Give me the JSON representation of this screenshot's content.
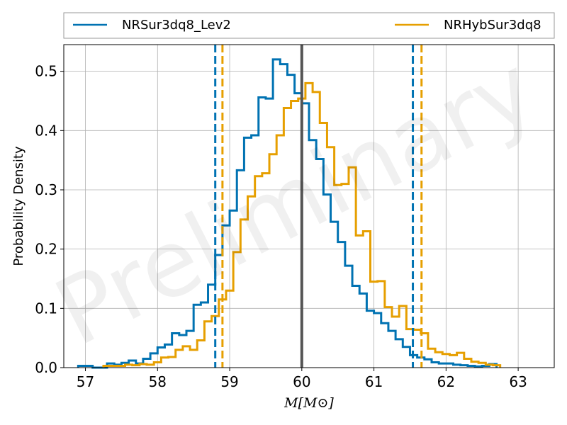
{
  "chart_data": {
    "type": "histogram",
    "title": "",
    "xlabel": "M[M⊙]",
    "ylabel": "Probability Density",
    "xlim": [
      56.7,
      63.5
    ],
    "ylim": [
      0.0,
      0.545
    ],
    "xticks": [
      57,
      58,
      59,
      60,
      61,
      62,
      63
    ],
    "yticks": [
      0.0,
      0.1,
      0.2,
      0.3,
      0.4,
      0.5
    ],
    "ytick_labels": [
      "0.0",
      "0.1",
      "0.2",
      "0.3",
      "0.4",
      "0.5"
    ],
    "grid": true,
    "legend_position": "top, above plot, two columns",
    "watermark": "Preliminary",
    "true_value": 60.0,
    "series": [
      {
        "name": "NRSur3dq8_Lev2",
        "color": "#0072b2",
        "bins_start": 56.9,
        "bin_width": 0.1,
        "values": [
          0.003,
          0.003,
          0,
          0,
          0.007,
          0.005,
          0.008,
          0.012,
          0.007,
          0.015,
          0.024,
          0.034,
          0.039,
          0.058,
          0.055,
          0.062,
          0.106,
          0.11,
          0.14,
          0.19,
          0.24,
          0.265,
          0.333,
          0.388,
          0.392,
          0.456,
          0.454,
          0.52,
          0.512,
          0.494,
          0.463,
          0.446,
          0.384,
          0.352,
          0.292,
          0.246,
          0.212,
          0.172,
          0.138,
          0.125,
          0.096,
          0.092,
          0.075,
          0.062,
          0.048,
          0.035,
          0.021,
          0.017,
          0.014,
          0.009,
          0.007,
          0.007,
          0.005,
          0.004,
          0.003,
          0.002,
          0.003,
          0.006
        ]
      },
      {
        "name": "NRHybSur3dq8",
        "color": "#e69f00",
        "bins_start": 57.25,
        "bin_width": 0.1,
        "values": [
          0.003,
          0.003,
          0.003,
          0.005,
          0.004,
          0.006,
          0.005,
          0.009,
          0.017,
          0.018,
          0.03,
          0.036,
          0.03,
          0.046,
          0.078,
          0.087,
          0.115,
          0.13,
          0.195,
          0.25,
          0.289,
          0.323,
          0.328,
          0.36,
          0.392,
          0.438,
          0.45,
          0.454,
          0.48,
          0.465,
          0.413,
          0.372,
          0.308,
          0.31,
          0.338,
          0.223,
          0.23,
          0.145,
          0.146,
          0.102,
          0.086,
          0.104,
          0.065,
          0.064,
          0.058,
          0.032,
          0.026,
          0.023,
          0.021,
          0.025,
          0.015,
          0.01,
          0.008,
          0.005,
          0.004
        ]
      }
    ],
    "vertical_lines": [
      {
        "x": 58.8,
        "color": "#0072b2",
        "style": "dashed"
      },
      {
        "x": 58.9,
        "color": "#e69f00",
        "style": "dashed"
      },
      {
        "x": 61.54,
        "color": "#0072b2",
        "style": "dashed"
      },
      {
        "x": 61.66,
        "color": "#e69f00",
        "style": "dashed"
      },
      {
        "x": 60.0,
        "color": "#555555",
        "style": "solid"
      }
    ]
  }
}
